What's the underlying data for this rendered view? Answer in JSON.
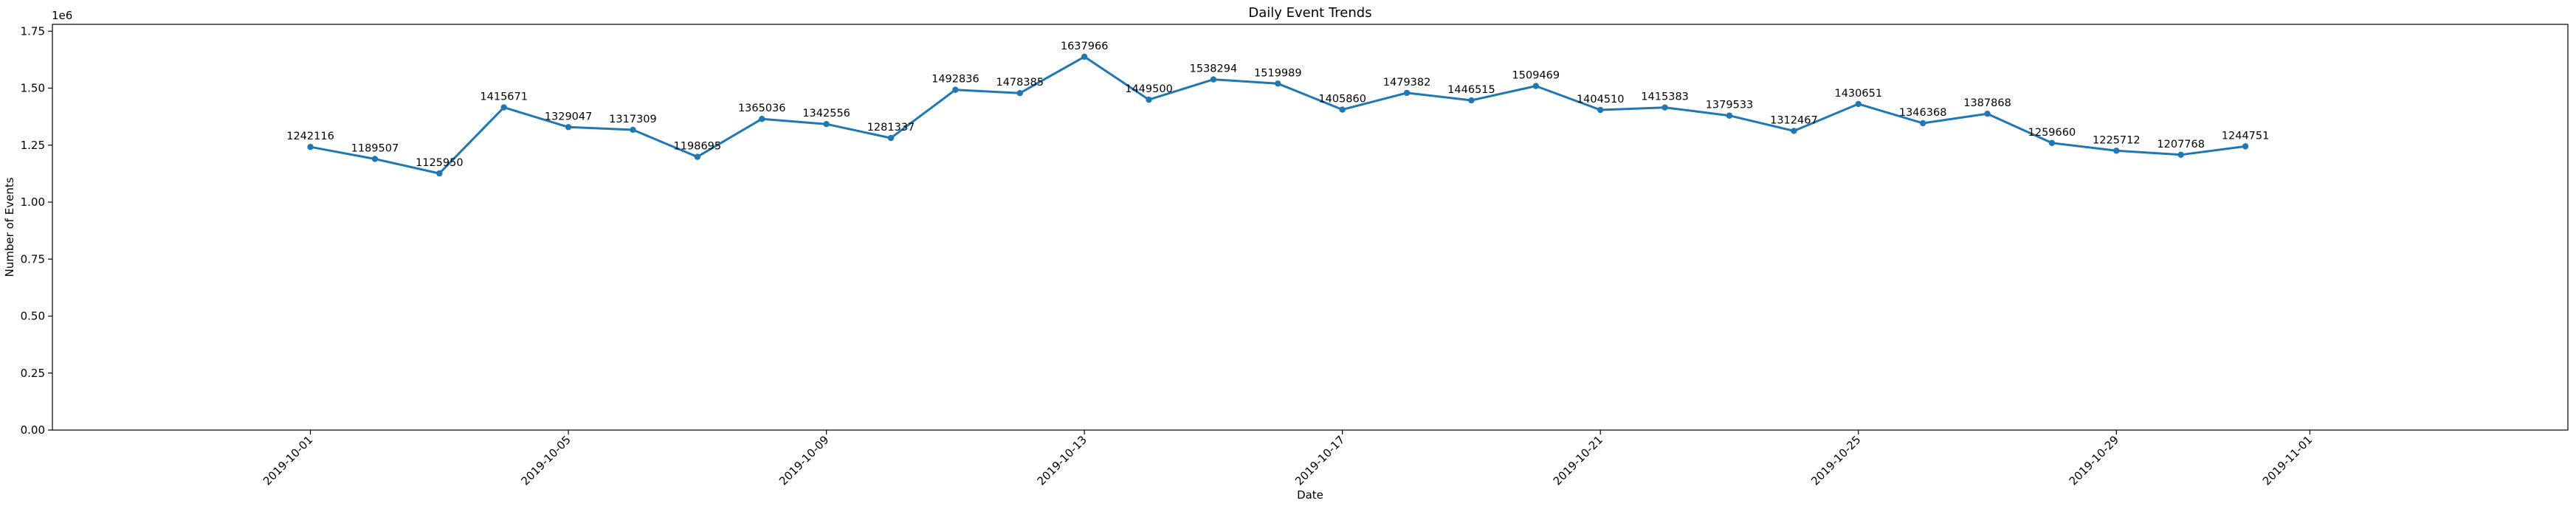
{
  "chart_data": {
    "type": "line",
    "title": "Daily Event Trends",
    "xlabel": "Date",
    "ylabel": "Number of Events",
    "y_offset_text": "1e6",
    "ylim": [
      0,
      1780000
    ],
    "y_ticks": [
      0,
      250000,
      500000,
      750000,
      1000000,
      1250000,
      1500000,
      1750000
    ],
    "y_tick_labels": [
      "0.00",
      "0.25",
      "0.50",
      "0.75",
      "1.00",
      "1.25",
      "1.50",
      "1.75"
    ],
    "xlim": [
      "2019-09-27",
      "2019-11-05"
    ],
    "x_ticks": [
      "2019-10-01",
      "2019-10-05",
      "2019-10-09",
      "2019-10-13",
      "2019-10-17",
      "2019-10-21",
      "2019-10-25",
      "2019-10-29",
      "2019-11-01"
    ],
    "x_tick_labels": [
      "2019-10-01",
      "2019-10-05",
      "2019-10-09",
      "2019-10-13",
      "2019-10-17",
      "2019-10-21",
      "2019-10-25",
      "2019-10-29",
      "2019-11-01"
    ],
    "x_tick_rotation": 45,
    "grid": false,
    "legend": false,
    "line_color": "#1f77b4",
    "marker": "circle",
    "x": [
      "2019-10-01",
      "2019-10-02",
      "2019-10-03",
      "2019-10-04",
      "2019-10-05",
      "2019-10-06",
      "2019-10-07",
      "2019-10-08",
      "2019-10-09",
      "2019-10-10",
      "2019-10-11",
      "2019-10-12",
      "2019-10-13",
      "2019-10-14",
      "2019-10-15",
      "2019-10-16",
      "2019-10-17",
      "2019-10-18",
      "2019-10-19",
      "2019-10-20",
      "2019-10-21",
      "2019-10-22",
      "2019-10-23",
      "2019-10-24",
      "2019-10-25",
      "2019-10-26",
      "2019-10-27",
      "2019-10-28",
      "2019-10-29",
      "2019-10-30",
      "2019-10-31"
    ],
    "values": [
      1242116,
      1189507,
      1125950,
      1415671,
      1329047,
      1317309,
      1198695,
      1365036,
      1342556,
      1281337,
      1492836,
      1478385,
      1637966,
      1449500,
      1538294,
      1519989,
      1405860,
      1479382,
      1446515,
      1509469,
      1404510,
      1415383,
      1379533,
      1312467,
      1430651,
      1346368,
      1387868,
      1259660,
      1225712,
      1207768,
      1244751
    ]
  }
}
